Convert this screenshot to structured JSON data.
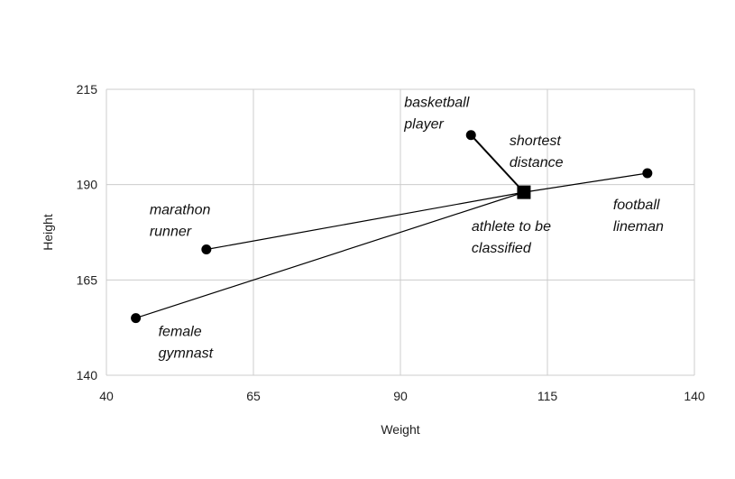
{
  "chart_data": {
    "type": "scatter",
    "title": "",
    "xlabel": "Weight",
    "ylabel": "Height",
    "xlim": [
      40,
      140
    ],
    "ylim": [
      140,
      215
    ],
    "xticks": [
      "40",
      "65",
      "90",
      "115",
      "140"
    ],
    "yticks": [
      "140",
      "165",
      "190",
      "215"
    ],
    "grid": true,
    "points": [
      {
        "label": [
          "basketball",
          "player"
        ],
        "x": 102,
        "y": 203,
        "marker": "circle"
      },
      {
        "label": [
          "football",
          "lineman"
        ],
        "x": 132,
        "y": 193,
        "marker": "circle"
      },
      {
        "label": [
          "marathon",
          "runner"
        ],
        "x": 57,
        "y": 173,
        "marker": "circle"
      },
      {
        "label": [
          "female",
          "gymnast"
        ],
        "x": 45,
        "y": 155,
        "marker": "circle"
      }
    ],
    "target": {
      "label": [
        "athlete to be",
        "classified"
      ],
      "x": 111,
      "y": 188,
      "marker": "square"
    },
    "annotations": [
      {
        "text": [
          "shortest",
          "distance"
        ]
      }
    ],
    "colors": {
      "marker": "#000000",
      "grid": "#cccccc",
      "line": "#000000"
    }
  }
}
